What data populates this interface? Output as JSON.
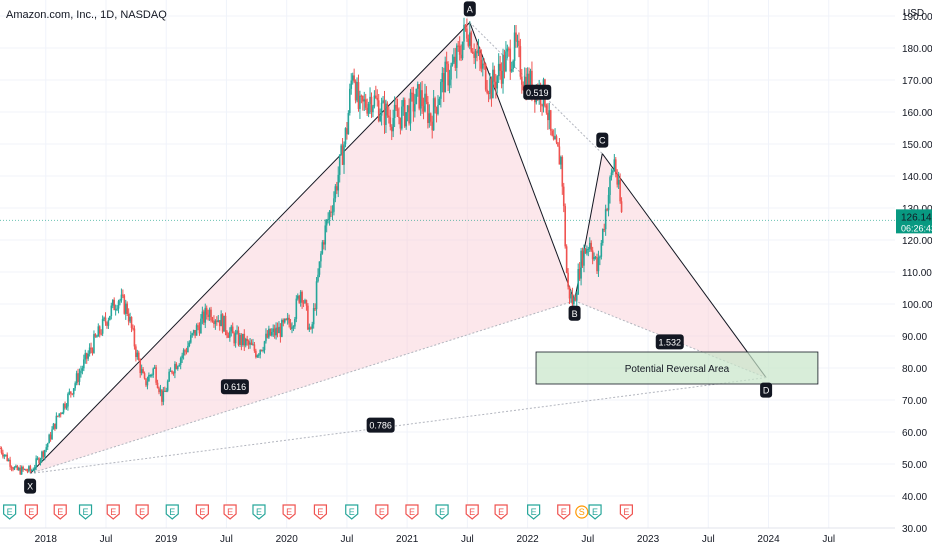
{
  "header": {
    "symbol_title": "Amazon.com, Inc., 1D, NASDAQ"
  },
  "price_axis": {
    "currency": "USD",
    "ticks": [
      "30.00",
      "40.00",
      "50.00",
      "60.00",
      "70.00",
      "80.00",
      "90.00",
      "100.00",
      "110.00",
      "120.00",
      "130.00",
      "140.00",
      "150.00",
      "160.00",
      "170.00",
      "180.00",
      "190.00"
    ],
    "tick_values": [
      30,
      40,
      50,
      60,
      70,
      80,
      90,
      100,
      110,
      120,
      130,
      140,
      150,
      160,
      170,
      180,
      190
    ],
    "last_price": "126.14",
    "countdown": "06:26:43"
  },
  "time_axis": {
    "labels": [
      "2018",
      "Jul",
      "2019",
      "Jul",
      "2020",
      "Jul",
      "2021",
      "Jul",
      "2022",
      "Jul",
      "2023",
      "Jul",
      "2024",
      "Jul"
    ],
    "values": [
      2018.0,
      2018.5,
      2019.0,
      2019.5,
      2020.0,
      2020.5,
      2021.0,
      2021.5,
      2022.0,
      2022.5,
      2023.0,
      2023.5,
      2024.0,
      2024.5
    ]
  },
  "chart_data": {
    "type": "line",
    "title": "Amazon.com, Inc., 1D, NASDAQ",
    "xlabel": "",
    "ylabel": "USD",
    "xlim": [
      2017.62,
      2025.05
    ],
    "ylim": [
      30,
      195
    ],
    "series": [
      {
        "name": "",
        "x": [
          2017.62,
          2017.75,
          2017.88,
          2018.0,
          2018.1,
          2018.2,
          2018.3,
          2018.4,
          2018.5,
          2018.6,
          2018.68,
          2018.75,
          2018.82,
          2018.9,
          2018.97,
          2019.05,
          2019.15,
          2019.25,
          2019.35,
          2019.45,
          2019.55,
          2019.65,
          2019.75,
          2019.85,
          2019.95,
          2020.05,
          2020.12,
          2020.2,
          2020.3,
          2020.4,
          2020.5,
          2020.55,
          2020.6,
          2020.7,
          2020.8,
          2020.9,
          2021.0,
          2021.1,
          2021.2,
          2021.3,
          2021.4,
          2021.5,
          2021.6,
          2021.7,
          2021.8,
          2021.9,
          2021.97,
          2022.05,
          2022.15,
          2022.2,
          2022.28,
          2022.33,
          2022.38,
          2022.45,
          2022.52,
          2022.58,
          2022.65,
          2022.72,
          2022.78
        ],
        "values": [
          55,
          48,
          48,
          55,
          65,
          72,
          80,
          88,
          95,
          102,
          98,
          85,
          75,
          80,
          70,
          80,
          85,
          92,
          98,
          95,
          90,
          88,
          85,
          90,
          92,
          95,
          105,
          90,
          120,
          135,
          155,
          175,
          160,
          165,
          160,
          158,
          160,
          165,
          158,
          170,
          175,
          187,
          175,
          168,
          175,
          180,
          170,
          168,
          165,
          150,
          145,
          105,
          100,
          115,
          120,
          110,
          130,
          145,
          128
        ]
      }
    ],
    "indicator_values": {
      "last": 126.14
    },
    "harmonic_pattern": {
      "points": [
        {
          "label": "X",
          "x": 2017.87,
          "y": 47
        },
        {
          "label": "A",
          "x": 2021.52,
          "y": 188
        },
        {
          "label": "B",
          "x": 2022.39,
          "y": 101
        },
        {
          "label": "C",
          "x": 2022.62,
          "y": 147
        },
        {
          "label": "D",
          "x": 2023.98,
          "y": 77
        }
      ],
      "ratios": [
        {
          "label": "0.616",
          "x": 2019.57,
          "y": 74
        },
        {
          "label": "0.519",
          "x": 2022.08,
          "y": 166
        },
        {
          "label": "1.532",
          "x": 2023.18,
          "y": 88
        },
        {
          "label": "0.786",
          "x": 2020.78,
          "y": 62
        }
      ]
    },
    "annotation": {
      "text": "Potential Reversal Area",
      "x0": 2022.07,
      "x1": 2024.41,
      "y0": 75,
      "y1": 85
    },
    "events": {
      "labels": [
        "E",
        "E",
        "E",
        "E",
        "E",
        "E",
        "E",
        "E",
        "E",
        "E",
        "E",
        "E",
        "E",
        "E",
        "E",
        "E",
        "E",
        "E",
        "E",
        "E",
        "S",
        "E",
        "E"
      ],
      "x": [
        2017.7,
        2017.88,
        2018.12,
        2018.33,
        2018.56,
        2018.8,
        2019.05,
        2019.3,
        2019.53,
        2019.77,
        2020.02,
        2020.28,
        2020.54,
        2020.79,
        2021.04,
        2021.29,
        2021.54,
        2021.78,
        2022.05,
        2022.3,
        2022.45,
        2022.56,
        2022.82
      ],
      "kind": [
        "earnings",
        "earnings",
        "earnings",
        "earnings",
        "earnings",
        "earnings",
        "earnings",
        "earnings",
        "earnings",
        "earnings",
        "earnings",
        "earnings",
        "earnings",
        "earnings",
        "earnings",
        "earnings",
        "earnings",
        "earnings",
        "earnings",
        "earnings",
        "split",
        "earnings",
        "earnings"
      ]
    }
  },
  "colors": {
    "grid": "#f0f3fa",
    "pattern_fill": "#f8c9d2",
    "pattern_line": "#131722",
    "ratio_line": "#b2b5be",
    "up": "#26a69a",
    "down": "#ef5350",
    "last_price_bg": "#089981",
    "pra_fill": "#c8e6c9",
    "pra_text": "#f23645"
  }
}
